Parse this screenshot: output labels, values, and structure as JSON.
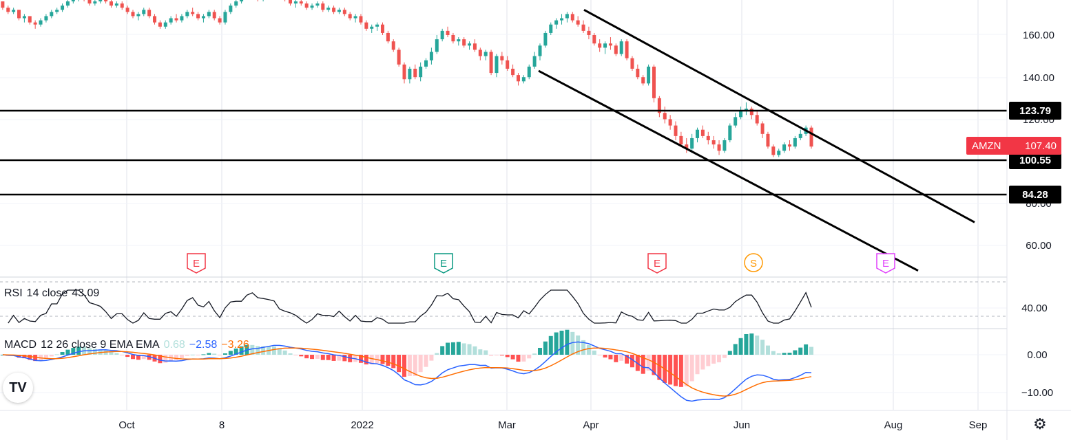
{
  "chart_data": {
    "type": "candlestick",
    "symbol": "AMZN",
    "last_price": "107.40",
    "x_ticks": [
      "Oct",
      "8",
      "2022",
      "Mar",
      "Apr",
      "Jun",
      "Aug",
      "Sep"
    ],
    "price_axis_ticks": [
      "160.00",
      "140.00",
      "120.00",
      "80.00",
      "60.00"
    ],
    "horizontal_levels": [
      "123.79",
      "100.55",
      "84.28"
    ],
    "channel_lines": [
      {
        "from": [
          "Mar 25",
          172
        ],
        "to": [
          "Jul 25",
          71
        ]
      },
      {
        "from": [
          "Mar 12",
          143
        ],
        "to": [
          "Jul 30",
          48
        ]
      }
    ],
    "events": [
      {
        "label": "E",
        "date": "Oct 28",
        "color": "#f23645"
      },
      {
        "label": "E",
        "date": "Feb 3",
        "color": "#089981"
      },
      {
        "label": "E",
        "date": "Apr 28",
        "color": "#f23645"
      },
      {
        "label": "S",
        "date": "Jun 6",
        "color": "#ff9800"
      },
      {
        "label": "E",
        "date": "Jul 28",
        "color": "#e040fb"
      }
    ],
    "ohlc": [
      [
        1,
        176,
        176,
        172,
        173
      ],
      [
        2,
        173,
        174,
        170,
        171
      ],
      [
        3,
        171,
        173,
        170,
        172
      ],
      [
        4,
        172,
        172,
        167,
        168
      ],
      [
        5,
        168,
        170,
        166,
        169
      ],
      [
        6,
        169,
        169,
        165,
        166
      ],
      [
        7,
        166,
        167,
        163,
        165
      ],
      [
        8,
        165,
        168,
        164,
        167
      ],
      [
        9,
        167,
        170,
        166,
        169
      ],
      [
        10,
        169,
        172,
        168,
        171
      ],
      [
        11,
        171,
        173,
        170,
        172
      ],
      [
        12,
        172,
        175,
        171,
        174
      ],
      [
        13,
        174,
        177,
        173,
        176
      ],
      [
        14,
        176,
        178,
        175,
        177
      ],
      [
        15,
        177,
        179,
        176,
        178
      ],
      [
        16,
        178,
        179,
        176,
        177
      ],
      [
        17,
        177,
        178,
        174,
        175
      ],
      [
        18,
        175,
        177,
        174,
        176
      ],
      [
        19,
        176,
        178,
        175,
        177
      ],
      [
        20,
        177,
        178,
        175,
        176
      ],
      [
        21,
        176,
        177,
        173,
        174
      ],
      [
        22,
        174,
        176,
        173,
        175
      ],
      [
        23,
        175,
        176,
        172,
        173
      ],
      [
        24,
        173,
        174,
        170,
        171
      ],
      [
        25,
        171,
        172,
        168,
        169
      ],
      [
        26,
        169,
        171,
        167,
        170
      ],
      [
        27,
        170,
        173,
        169,
        172
      ],
      [
        28,
        172,
        173,
        168,
        169
      ],
      [
        29,
        169,
        170,
        165,
        166
      ],
      [
        30,
        166,
        167,
        163,
        164
      ],
      [
        31,
        164,
        167,
        163,
        166
      ],
      [
        32,
        166,
        169,
        165,
        168
      ],
      [
        33,
        168,
        170,
        166,
        167
      ],
      [
        34,
        167,
        170,
        166,
        169
      ],
      [
        35,
        169,
        172,
        168,
        171
      ],
      [
        36,
        171,
        173,
        169,
        170
      ],
      [
        37,
        170,
        171,
        167,
        168
      ],
      [
        38,
        168,
        170,
        166,
        169
      ],
      [
        39,
        169,
        172,
        168,
        171
      ],
      [
        40,
        171,
        172,
        167,
        168
      ],
      [
        41,
        168,
        169,
        165,
        166
      ],
      [
        42,
        166,
        172,
        165,
        171
      ],
      [
        43,
        171,
        175,
        170,
        174
      ],
      [
        44,
        174,
        177,
        173,
        176
      ],
      [
        45,
        176,
        179,
        175,
        178
      ],
      [
        46,
        178,
        180,
        177,
        179
      ],
      [
        47,
        179,
        180,
        177,
        178
      ],
      [
        48,
        178,
        179,
        176,
        177
      ],
      [
        49,
        177,
        180,
        176,
        179
      ],
      [
        50,
        179,
        181,
        178,
        180
      ],
      [
        51,
        180,
        182,
        179,
        181
      ],
      [
        52,
        181,
        182,
        178,
        179
      ],
      [
        53,
        179,
        180,
        176,
        177
      ],
      [
        54,
        177,
        178,
        174,
        175
      ],
      [
        55,
        175,
        177,
        173,
        176
      ],
      [
        56,
        176,
        178,
        174,
        175
      ],
      [
        57,
        175,
        176,
        172,
        173
      ],
      [
        58,
        173,
        175,
        172,
        174
      ],
      [
        59,
        174,
        176,
        173,
        175
      ],
      [
        60,
        175,
        176,
        171,
        172
      ],
      [
        61,
        172,
        174,
        171,
        173
      ],
      [
        62,
        173,
        174,
        170,
        171
      ],
      [
        63,
        171,
        173,
        170,
        172
      ],
      [
        64,
        172,
        173,
        169,
        170
      ],
      [
        65,
        170,
        171,
        167,
        168
      ],
      [
        66,
        168,
        170,
        166,
        169
      ],
      [
        67,
        169,
        170,
        165,
        166
      ],
      [
        68,
        166,
        167,
        162,
        163
      ],
      [
        69,
        163,
        165,
        161,
        164
      ],
      [
        70,
        164,
        166,
        162,
        165
      ],
      [
        71,
        165,
        166,
        160,
        161
      ],
      [
        72,
        161,
        162,
        156,
        157
      ],
      [
        73,
        157,
        158,
        152,
        153
      ],
      [
        74,
        153,
        154,
        145,
        146
      ],
      [
        75,
        146,
        147,
        137,
        139
      ],
      [
        76,
        139,
        145,
        137,
        144
      ],
      [
        77,
        144,
        146,
        139,
        140
      ],
      [
        78,
        140,
        147,
        138,
        145
      ],
      [
        79,
        145,
        149,
        144,
        148
      ],
      [
        80,
        148,
        154,
        146,
        152
      ],
      [
        81,
        152,
        160,
        151,
        158
      ],
      [
        82,
        158,
        163,
        157,
        162
      ],
      [
        83,
        162,
        164,
        159,
        160
      ],
      [
        84,
        160,
        161,
        156,
        157
      ],
      [
        85,
        157,
        159,
        155,
        158
      ],
      [
        86,
        158,
        159,
        154,
        155
      ],
      [
        87,
        155,
        157,
        153,
        156
      ],
      [
        88,
        156,
        158,
        152,
        153
      ],
      [
        89,
        153,
        154,
        148,
        150
      ],
      [
        90,
        150,
        153,
        148,
        152
      ],
      [
        91,
        152,
        153,
        141,
        142
      ],
      [
        92,
        142,
        151,
        140,
        150
      ],
      [
        93,
        150,
        152,
        146,
        148
      ],
      [
        94,
        148,
        150,
        143,
        144
      ],
      [
        95,
        144,
        146,
        140,
        141
      ],
      [
        96,
        141,
        142,
        136,
        138
      ],
      [
        97,
        138,
        141,
        137,
        140
      ],
      [
        98,
        140,
        146,
        139,
        145
      ],
      [
        99,
        145,
        152,
        144,
        150
      ],
      [
        100,
        150,
        156,
        148,
        155
      ],
      [
        101,
        155,
        162,
        154,
        161
      ],
      [
        102,
        161,
        166,
        160,
        165
      ],
      [
        103,
        165,
        168,
        163,
        167
      ],
      [
        104,
        167,
        170,
        165,
        168
      ],
      [
        105,
        168,
        171,
        166,
        170
      ],
      [
        106,
        170,
        171,
        166,
        167
      ],
      [
        107,
        167,
        169,
        164,
        165
      ],
      [
        108,
        165,
        167,
        161,
        162
      ],
      [
        109,
        162,
        164,
        158,
        160
      ],
      [
        110,
        160,
        161,
        155,
        156
      ],
      [
        111,
        156,
        158,
        152,
        154
      ],
      [
        112,
        154,
        157,
        151,
        156
      ],
      [
        113,
        156,
        159,
        153,
        155
      ],
      [
        114,
        155,
        156,
        150,
        151
      ],
      [
        115,
        151,
        158,
        150,
        157
      ],
      [
        116,
        157,
        158,
        148,
        149
      ],
      [
        117,
        149,
        150,
        143,
        144
      ],
      [
        118,
        144,
        146,
        139,
        140
      ],
      [
        119,
        140,
        141,
        136,
        137
      ],
      [
        120,
        137,
        146,
        136,
        145
      ],
      [
        121,
        145,
        146,
        128,
        130
      ],
      [
        122,
        130,
        131,
        121,
        123
      ],
      [
        123,
        123,
        126,
        118,
        120
      ],
      [
        124,
        120,
        122,
        115,
        117
      ],
      [
        125,
        117,
        119,
        110,
        112
      ],
      [
        126,
        112,
        114,
        107,
        108
      ],
      [
        127,
        108,
        111,
        104,
        106
      ],
      [
        128,
        106,
        113,
        104,
        111
      ],
      [
        129,
        111,
        116,
        109,
        115
      ],
      [
        130,
        115,
        117,
        111,
        112
      ],
      [
        131,
        112,
        114,
        108,
        110
      ],
      [
        132,
        110,
        112,
        106,
        108
      ],
      [
        133,
        108,
        110,
        103,
        105
      ],
      [
        134,
        105,
        111,
        104,
        110
      ],
      [
        135,
        110,
        118,
        109,
        117
      ],
      [
        136,
        117,
        123,
        116,
        121
      ],
      [
        137,
        121,
        126,
        120,
        124
      ],
      [
        138,
        124,
        128,
        122,
        125
      ],
      [
        139,
        125,
        126,
        120,
        122
      ],
      [
        140,
        122,
        124,
        117,
        118
      ],
      [
        141,
        118,
        119,
        111,
        113
      ],
      [
        142,
        113,
        114,
        106,
        107
      ],
      [
        143,
        107,
        108,
        102,
        103
      ],
      [
        144,
        103,
        106,
        102,
        105
      ],
      [
        145,
        105,
        109,
        104,
        108
      ],
      [
        146,
        108,
        110,
        105,
        107
      ],
      [
        147,
        107,
        112,
        106,
        111
      ],
      [
        148,
        111,
        115,
        110,
        113
      ],
      [
        149,
        113,
        117,
        112,
        116
      ],
      [
        150,
        116,
        117,
        106,
        107
      ]
    ],
    "rsi": {
      "label": "RSI",
      "params": "14 close",
      "value": "43.09",
      "axis_tick": "40.00"
    },
    "macd": {
      "label": "MACD",
      "params": "12 26 close 9 EMA EMA",
      "histogram": "0.68",
      "macd": "−2.58",
      "signal": "−3.26",
      "axis_ticks": [
        "0.00",
        "−10.00"
      ]
    }
  },
  "ui": {
    "logo": "TV",
    "settings_icon": "gear-icon"
  },
  "colors": {
    "up": "#26a69a",
    "down": "#ef5350",
    "macd_line": "#2962ff",
    "signal_line": "#ff6d00",
    "hist_pos_strong": "#26a69a",
    "hist_pos_weak": "#b2dfdb",
    "hist_neg_strong": "#ff5252",
    "hist_neg_weak": "#ffcdd2",
    "price_tag": "#f23645"
  }
}
